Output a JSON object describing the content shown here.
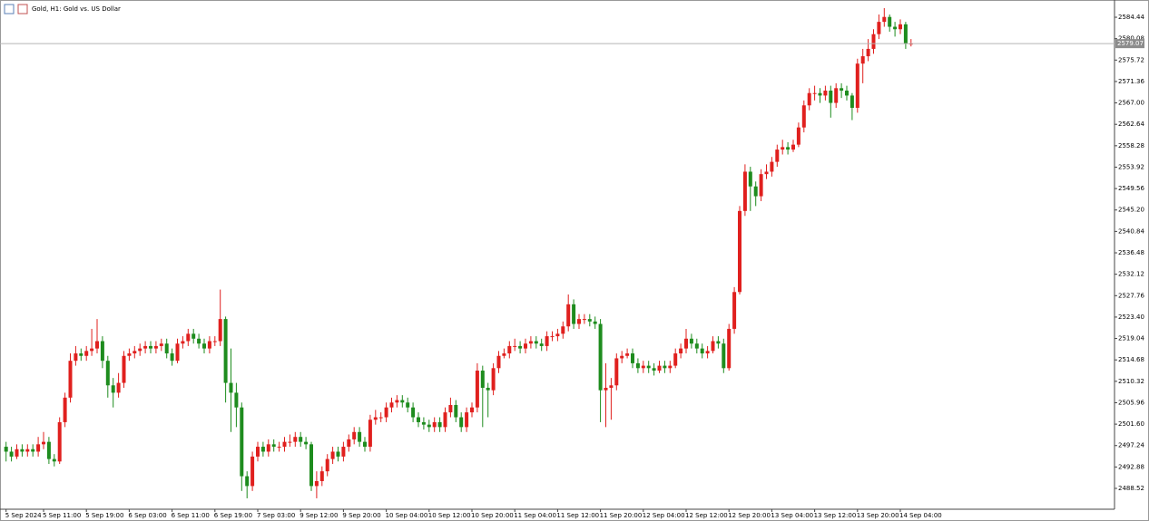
{
  "chart_data": {
    "type": "candlestick",
    "title": "Gold, H1: Gold vs. US Dollar",
    "up_color": "#e0201e",
    "down_color": "#1e8c1e",
    "categories": [
      "5 Sep 2024",
      null,
      null,
      null,
      null,
      null,
      null,
      "5 Sep 11:00",
      null,
      null,
      null,
      null,
      null,
      null,
      null,
      "5 Sep 19:00",
      null,
      null,
      null,
      null,
      null,
      null,
      null,
      "6 Sep 03:00",
      null,
      null,
      null,
      null,
      null,
      null,
      null,
      "6 Sep 11:00",
      null,
      null,
      null,
      null,
      null,
      null,
      null,
      "6 Sep 19:00",
      null,
      null,
      null,
      null,
      null,
      null,
      null,
      "7 Sep 03:00",
      null,
      null,
      null,
      null,
      null,
      null,
      null,
      "9 Sep 12:00",
      null,
      null,
      null,
      null,
      null,
      null,
      null,
      "9 Sep 20:00",
      null,
      null,
      null,
      null,
      null,
      null,
      null,
      "10 Sep 04:00",
      null,
      null,
      null,
      null,
      null,
      null,
      null,
      "10 Sep 12:00",
      null,
      null,
      null,
      null,
      null,
      null,
      null,
      "10 Sep 20:00",
      null,
      null,
      null,
      null,
      null,
      null,
      null,
      "11 Sep 04:00",
      null,
      null,
      null,
      null,
      null,
      null,
      null,
      "11 Sep 12:00",
      null,
      null,
      null,
      null,
      null,
      null,
      null,
      "11 Sep 20:00",
      null,
      null,
      null,
      null,
      null,
      null,
      null,
      "12 Sep 04:00",
      null,
      null,
      null,
      null,
      null,
      null,
      null,
      "12 Sep 12:00",
      null,
      null,
      null,
      null,
      null,
      null,
      null,
      "12 Sep 20:00",
      null,
      null,
      null,
      null,
      null,
      null,
      null,
      "13 Sep 04:00",
      null,
      null,
      null,
      null,
      null,
      null,
      null,
      "13 Sep 12:00",
      null,
      null,
      null,
      null,
      null,
      null,
      null,
      "13 Sep 20:00",
      null,
      null,
      null,
      null,
      null,
      null,
      null,
      "14 Sep 04:00",
      null,
      null
    ],
    "open": [
      2497,
      2496,
      2495,
      2496.5,
      2496,
      2496.5,
      2496,
      2497.5,
      2498,
      2494.5,
      2494,
      2502,
      2507,
      2514.5,
      2516,
      2515.5,
      2516.5,
      2517,
      2518.5,
      2514.5,
      2509.5,
      2508,
      2510,
      2515.5,
      2516,
      2516.5,
      2517,
      2517.5,
      2517,
      2517.5,
      2518,
      2516,
      2514.5,
      2518,
      2518.5,
      2520,
      2519,
      2518,
      2517,
      2518.5,
      2518.5,
      2523,
      2510,
      2508,
      2505,
      2491,
      2489,
      2495,
      2497,
      2496,
      2497.5,
      2497,
      2497,
      2498,
      2498,
      2499,
      2498,
      2497.5,
      2489,
      2490,
      2492,
      2494.5,
      2496,
      2495,
      2497,
      2498.5,
      2500,
      2498,
      2497,
      2502.5,
      2503,
      2503,
      2505,
      2506,
      2506.5,
      2506,
      2505,
      2503,
      2502,
      2501.5,
      2501,
      2502,
      2501,
      2504,
      2505.5,
      2503,
      2501,
      2504,
      2505,
      2512.5,
      2509,
      2508.5,
      2513,
      2515.5,
      2516,
      2517.5,
      2517.5,
      2517,
      2518,
      2518.5,
      2518,
      2517.5,
      2519.5,
      2519.5,
      2520,
      2521.5,
      2526,
      2522,
      2523,
      2523,
      2522.5,
      2522,
      2508.5,
      2509,
      2509.5,
      2515,
      2515.5,
      2516,
      2514,
      2513,
      2513.5,
      2513,
      2512.5,
      2513.5,
      2513,
      2513.5,
      2516,
      2517,
      2519,
      2518,
      2517,
      2516,
      2516.5,
      2518.5,
      2518,
      2513,
      2521,
      2528.5,
      2545,
      2553,
      2550,
      2548,
      2552.5,
      2553,
      2555,
      2557.5,
      2558,
      2557.5,
      2558.5,
      2562,
      2566.5,
      2569,
      2569,
      2568.5,
      2569.5,
      2567,
      2570,
      2569.5,
      2568.5,
      2566,
      2575,
      2576.5,
      2578,
      2581,
      2583.5,
      2584.5,
      2582.5,
      2582,
      2583,
      2579
    ],
    "high": [
      2498,
      2497,
      2497.5,
      2497.5,
      2497.5,
      2497.5,
      2499,
      2500,
      2499,
      2495.5,
      2503,
      2508,
      2516,
      2517.5,
      2517,
      2517.5,
      2521,
      2523,
      2519.5,
      2515.5,
      2511,
      2512,
      2516.5,
      2517,
      2517.5,
      2518,
      2518.5,
      2518.5,
      2518.5,
      2519,
      2519,
      2517,
      2519,
      2519.5,
      2521,
      2521,
      2520,
      2519,
      2519.5,
      2519.5,
      2529,
      2523.5,
      2517,
      2510,
      2506,
      2492,
      2496,
      2498,
      2498,
      2498.5,
      2498.5,
      2498,
      2499,
      2499.5,
      2500,
      2500,
      2499,
      2498,
      2492,
      2493,
      2495.5,
      2497,
      2497,
      2498,
      2499.5,
      2501,
      2501,
      2499,
      2503.5,
      2504.5,
      2504,
      2506,
      2507,
      2507.5,
      2507.5,
      2507,
      2506,
      2504,
      2503,
      2502.5,
      2503,
      2503,
      2505,
      2507,
      2506.5,
      2504,
      2505,
      2506,
      2514,
      2513.5,
      2510,
      2514,
      2516.5,
      2517,
      2518.5,
      2519,
      2518.5,
      2519,
      2519.5,
      2519.5,
      2519,
      2520.5,
      2520.5,
      2521,
      2522.5,
      2528,
      2527,
      2524,
      2524,
      2524,
      2523.5,
      2523,
      2514,
      2511,
      2516,
      2516.5,
      2517,
      2517,
      2515,
      2514.5,
      2514.5,
      2514,
      2514.5,
      2514.5,
      2514.5,
      2517,
      2518,
      2521,
      2520,
      2519,
      2518,
      2517.5,
      2519.5,
      2519.5,
      2519,
      2522,
      2529.5,
      2546,
      2554.5,
      2554,
      2551,
      2553.5,
      2554.5,
      2556,
      2558.5,
      2559.5,
      2559,
      2559.5,
      2563,
      2567.5,
      2570,
      2570.5,
      2570,
      2570.5,
      2570.5,
      2571,
      2571,
      2570.5,
      2569,
      2576,
      2578,
      2580,
      2582,
      2585,
      2586.3,
      2585,
      2583.5,
      2584,
      2583.5,
      2580
    ],
    "low": [
      2494,
      2494,
      2494.5,
      2495,
      2495,
      2495,
      2495,
      2496.5,
      2493.5,
      2493,
      2493.5,
      2501,
      2506,
      2513.5,
      2514.5,
      2514.5,
      2515.5,
      2516,
      2513,
      2507,
      2505,
      2507,
      2509,
      2514.5,
      2515,
      2515.5,
      2516,
      2516,
      2516,
      2516.5,
      2515,
      2513.5,
      2514,
      2517,
      2517.5,
      2518,
      2517,
      2516,
      2516,
      2517.5,
      2517.5,
      2506,
      2500,
      2501,
      2488,
      2486.5,
      2488,
      2494,
      2495,
      2495,
      2496,
      2496,
      2496,
      2497,
      2497,
      2497,
      2496.5,
      2488,
      2486.5,
      2489,
      2491,
      2493.5,
      2494,
      2494,
      2496,
      2497.5,
      2497,
      2496,
      2496,
      2501.5,
      2502,
      2502,
      2504,
      2505,
      2505,
      2504,
      2502,
      2501,
      2500.5,
      2500,
      2500,
      2500,
      2500,
      2503,
      2502,
      2500,
      2500,
      2503,
      2504,
      2501,
      2503,
      2507.5,
      2512,
      2515,
      2515,
      2516.5,
      2516,
      2516,
      2517,
      2517,
      2516.5,
      2516.5,
      2518.5,
      2518.5,
      2519,
      2520.5,
      2521,
      2521,
      2522,
      2521.5,
      2521,
      2502,
      2501,
      2502.5,
      2508.5,
      2514,
      2515,
      2513,
      2512,
      2512,
      2512,
      2511.5,
      2512,
      2512,
      2512,
      2513,
      2515,
      2516,
      2517,
      2516,
      2515,
      2515,
      2516,
      2517,
      2512,
      2512.5,
      2520,
      2528,
      2544,
      2545,
      2546,
      2547,
      2551.5,
      2552,
      2554,
      2556.5,
      2556.5,
      2557,
      2558,
      2561,
      2565.5,
      2567.5,
      2567,
      2567.5,
      2564,
      2566,
      2568,
      2567.5,
      2563.5,
      2565,
      2571,
      2575.5,
      2577,
      2580,
      2582.5,
      2581.5,
      2580.5,
      2581,
      2578,
      2578.5
    ],
    "close": [
      2496,
      2495,
      2496.5,
      2496,
      2496.5,
      2496,
      2497.5,
      2498,
      2494.5,
      2494,
      2502,
      2507,
      2514.5,
      2516,
      2515.5,
      2516.5,
      2517,
      2518.5,
      2514.5,
      2509.5,
      2508,
      2510,
      2515.5,
      2516,
      2516.5,
      2517,
      2517.5,
      2517,
      2517.5,
      2518,
      2516,
      2514.5,
      2518,
      2518.5,
      2520,
      2519,
      2518,
      2517,
      2518.5,
      2518.5,
      2523,
      2510,
      2508,
      2505,
      2491,
      2489,
      2495,
      2497,
      2496,
      2497.5,
      2497,
      2497,
      2498,
      2498,
      2499,
      2498,
      2497.5,
      2489,
      2490,
      2492,
      2494.5,
      2496,
      2495,
      2497,
      2498.5,
      2500,
      2498,
      2497,
      2502.5,
      2503,
      2503,
      2505,
      2506,
      2506.5,
      2506,
      2505,
      2503,
      2502,
      2501.5,
      2501,
      2502,
      2501,
      2504,
      2505.5,
      2503,
      2501,
      2504,
      2505,
      2512.5,
      2509,
      2508.5,
      2513,
      2515.5,
      2516,
      2517.5,
      2517.5,
      2517,
      2518,
      2518.5,
      2518,
      2517.5,
      2519.5,
      2519.5,
      2520,
      2521.5,
      2526,
      2522,
      2523,
      2523,
      2522.5,
      2522,
      2508.5,
      2509,
      2509.5,
      2515,
      2515.5,
      2516,
      2514,
      2513,
      2513.5,
      2513,
      2512.5,
      2513.5,
      2513,
      2513.5,
      2516,
      2517,
      2519,
      2518,
      2517,
      2516,
      2516.5,
      2518.5,
      2518,
      2513,
      2521,
      2528.5,
      2545,
      2553,
      2550,
      2548,
      2552.5,
      2553,
      2555,
      2557.5,
      2558,
      2557.5,
      2558.5,
      2562,
      2566.5,
      2569,
      2569,
      2568.5,
      2569.5,
      2567,
      2570,
      2569.5,
      2568.5,
      2566,
      2575,
      2576.5,
      2578,
      2581,
      2583.5,
      2584.5,
      2582.5,
      2582,
      2583,
      2579,
      2579.07
    ],
    "last_price": 2579.07,
    "ylim": [
      2484.28,
      2587.95
    ],
    "yticks": [
      2584.44,
      2580.08,
      2575.72,
      2571.36,
      {
        "value": 2567,
        "label": "2567.00"
      },
      2562.64,
      2558.28,
      2553.92,
      2549.56,
      {
        "value": 2545.2,
        "label": "2545.20"
      },
      2540.84,
      2536.48,
      2532.12,
      2527.76,
      {
        "value": 2523.4,
        "label": "2523.40"
      },
      2519.04,
      2514.68,
      2510.32,
      2505.96,
      {
        "value": 2501.6,
        "label": "2501.60"
      },
      2497.24,
      2492.88,
      2488.52
    ]
  }
}
